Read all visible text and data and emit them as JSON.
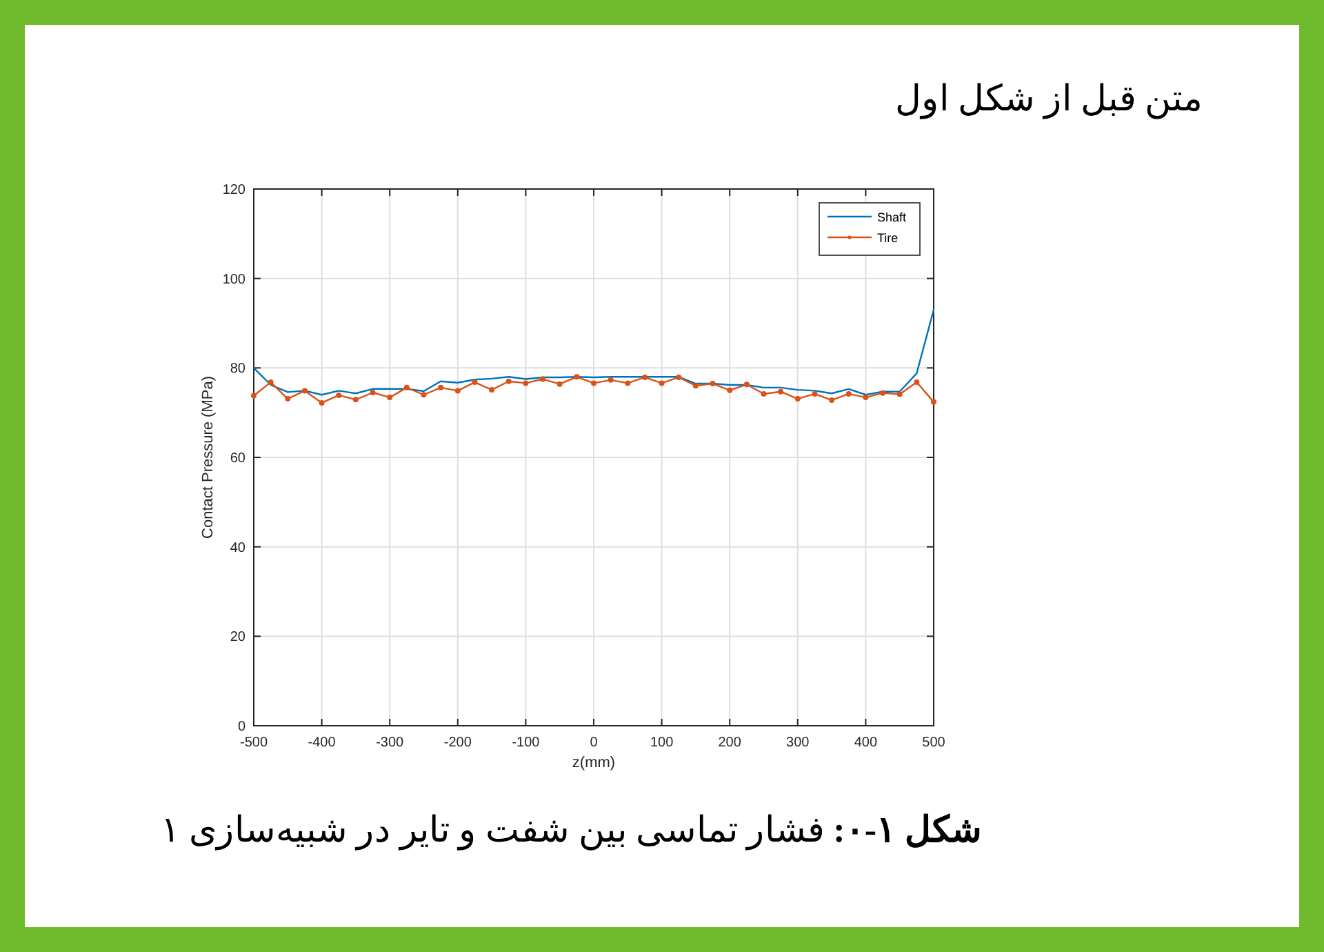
{
  "chart_data": {
    "type": "line",
    "title": "شکل ۱-۰: فشار تماسی بین شفت و تایر در شبیه‌سازی ۱",
    "annotations": [
      "متن قبل از شکل اول"
    ],
    "xlabel": "z(mm)",
    "ylabel": "Contact Pressure (MPa)",
    "x": [
      -500,
      -475,
      -450,
      -425,
      -400,
      -375,
      -350,
      -325,
      -300,
      -275,
      -250,
      -225,
      -200,
      -175,
      -150,
      -125,
      -100,
      -75,
      -50,
      -25,
      0,
      25,
      50,
      75,
      100,
      125,
      150,
      175,
      200,
      225,
      250,
      275,
      300,
      325,
      350,
      375,
      400,
      425,
      450,
      475,
      500
    ],
    "series": [
      {
        "name": "Shaft",
        "color": "#0072bd",
        "marker": "none",
        "values": [
          80,
          76.2,
          74.6,
          74.9,
          74.0,
          74.9,
          74.3,
          75.3,
          75.3,
          75.3,
          74.8,
          77.0,
          76.7,
          77.4,
          77.6,
          78.0,
          77.5,
          77.9,
          77.9,
          78.0,
          77.9,
          78.0,
          78.0,
          78.0,
          78.0,
          78.0,
          76.5,
          76.5,
          76.2,
          76.2,
          75.6,
          75.6,
          75.1,
          74.9,
          74.3,
          75.3,
          74.0,
          74.7,
          74.7,
          78.8,
          93.0
        ]
      },
      {
        "name": "Tire",
        "color": "#d95319",
        "marker": "circle",
        "values": [
          73.8,
          76.8,
          73.1,
          74.9,
          72.2,
          73.9,
          72.9,
          74.5,
          73.4,
          75.6,
          74.0,
          75.6,
          74.9,
          76.8,
          75.1,
          77.0,
          76.6,
          77.5,
          76.4,
          78.0,
          76.6,
          77.3,
          76.6,
          77.9,
          76.6,
          77.9,
          76.0,
          76.5,
          75.0,
          76.3,
          74.2,
          74.7,
          73.1,
          74.2,
          72.8,
          74.2,
          73.4,
          74.4,
          74.1,
          76.8,
          72.4
        ]
      }
    ],
    "xlim": [
      -500,
      500
    ],
    "xticks": [
      -500,
      -400,
      -300,
      -200,
      -100,
      0,
      100,
      200,
      300,
      400,
      500
    ],
    "ylim": [
      0,
      120
    ],
    "yticks": [
      0,
      20,
      40,
      60,
      80,
      100,
      120
    ],
    "grid": true,
    "legend": "top right",
    "line_style": "solid"
  }
}
